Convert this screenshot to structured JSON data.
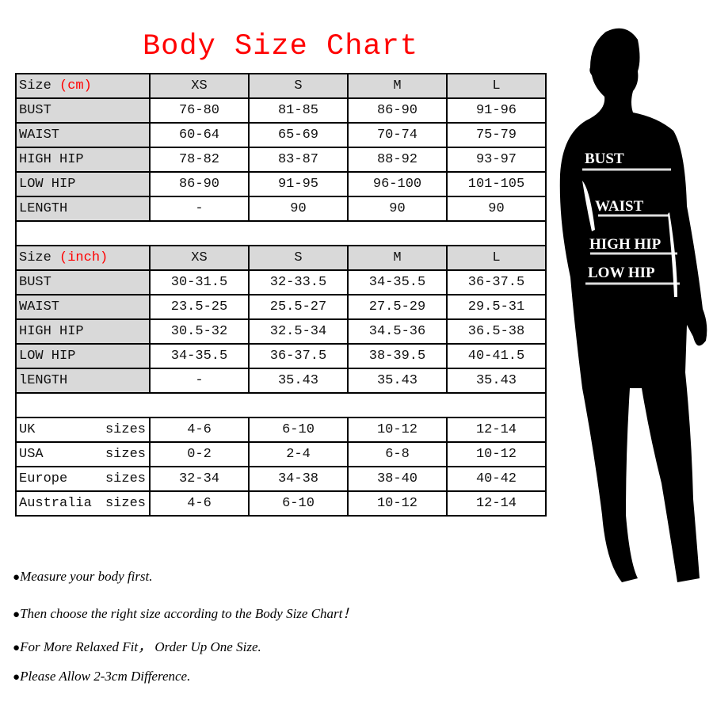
{
  "title": "Body Size Chart",
  "cm_table": {
    "header": {
      "label": "Size ",
      "unit": "(cm)",
      "sizes": [
        "XS",
        "S",
        "M",
        "L"
      ]
    },
    "rows": [
      {
        "label": "BUST",
        "values": [
          "76-80",
          "81-85",
          "86-90",
          "91-96"
        ]
      },
      {
        "label": "WAIST",
        "values": [
          "60-64",
          "65-69",
          "70-74",
          "75-79"
        ]
      },
      {
        "label": "HIGH HIP",
        "values": [
          "78-82",
          "83-87",
          "88-92",
          "93-97"
        ]
      },
      {
        "label": "LOW HIP",
        "values": [
          "86-90",
          "91-95",
          "96-100",
          "101-105"
        ]
      },
      {
        "label": "LENGTH",
        "values": [
          "-",
          "90",
          "90",
          "90"
        ]
      }
    ]
  },
  "inch_table": {
    "header": {
      "label": "Size ",
      "unit": "(inch)",
      "sizes": [
        "XS",
        "S",
        "M",
        "L"
      ]
    },
    "rows": [
      {
        "label": "BUST",
        "values": [
          "30-31.5",
          "32-33.5",
          "34-35.5",
          "36-37.5"
        ]
      },
      {
        "label": "WAIST",
        "values": [
          "23.5-25",
          "25.5-27",
          "27.5-29",
          "29.5-31"
        ]
      },
      {
        "label": "HIGH HIP",
        "values": [
          "30.5-32",
          "32.5-34",
          "34.5-36",
          "36.5-38"
        ]
      },
      {
        "label": "LOW HIP",
        "values": [
          "34-35.5",
          "36-37.5",
          "38-39.5",
          "40-41.5"
        ]
      },
      {
        "label": "lENGTH",
        "values": [
          "-",
          "35.43",
          "35.43",
          "35.43"
        ]
      }
    ]
  },
  "conversion_table": {
    "suffix": "sizes",
    "rows": [
      {
        "label": "UK",
        "values": [
          "4-6",
          "6-10",
          "10-12",
          "12-14"
        ]
      },
      {
        "label": "USA",
        "values": [
          "0-2",
          "2-4",
          "6-8",
          "10-12"
        ]
      },
      {
        "label": "Europe",
        "values": [
          "32-34",
          "34-38",
          "38-40",
          "40-42"
        ]
      },
      {
        "label": "Australia",
        "values": [
          "4-6",
          "6-10",
          "10-12",
          "12-14"
        ]
      }
    ]
  },
  "notes": [
    "Measure your body first.",
    "Then choose the right size according to the Body Size Chart！",
    "For More Relaxed Fit， Order Up One Size.",
    "Please Allow 2-3cm Difference."
  ],
  "figure_labels": {
    "bust": "BUST",
    "waist": "WAIST",
    "high_hip": "HIGH HIP",
    "low_hip": "LOW HIP"
  },
  "colors": {
    "title": "#ff0000",
    "header_bg": "#d9d9d9",
    "silhouette": "#000000"
  }
}
